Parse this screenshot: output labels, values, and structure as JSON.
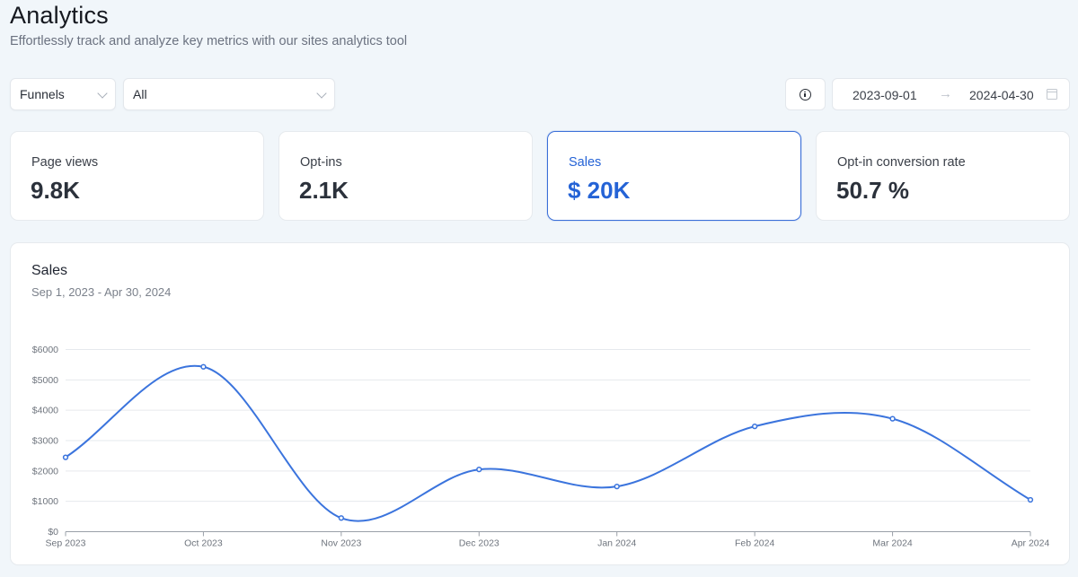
{
  "header": {
    "title": "Analytics",
    "subtitle": "Effortlessly track and analyze key metrics with our sites analytics tool"
  },
  "filters": {
    "type_select": {
      "value": "Funnels"
    },
    "scope_select": {
      "value": "All"
    },
    "info_button": {
      "icon": "info-icon"
    },
    "date_range": {
      "start": "2023-09-01",
      "arrow": "→",
      "end": "2024-04-30",
      "icon": "calendar-icon"
    }
  },
  "stats": [
    {
      "label": "Page views",
      "value": "9.8K",
      "active": false
    },
    {
      "label": "Opt-ins",
      "value": "2.1K",
      "active": false
    },
    {
      "label": "Sales",
      "value": "$ 20K",
      "active": true
    },
    {
      "label": "Opt-in conversion rate",
      "value": "50.7 %",
      "active": false
    }
  ],
  "colors": {
    "accent": "#2563d6",
    "line": "#3b74dd",
    "background": "#f1f6fa"
  },
  "chart_data": {
    "type": "line",
    "title": "Sales",
    "subtitle": "Sep 1, 2023 - Apr 30, 2024",
    "xlabel": "",
    "ylabel": "",
    "categories": [
      "Sep 2023",
      "Oct 2023",
      "Nov 2023",
      "Dec 2023",
      "Jan 2024",
      "Feb 2024",
      "Mar 2024",
      "Apr 2024"
    ],
    "series": [
      {
        "name": "Sales",
        "values": [
          2450,
          5430,
          450,
          2050,
          1490,
          3470,
          3720,
          1050
        ]
      }
    ],
    "ylim": [
      0,
      6000
    ],
    "yticks": [
      0,
      1000,
      2000,
      3000,
      4000,
      5000,
      6000
    ],
    "ytick_labels": [
      "$0",
      "$1000",
      "$2000",
      "$3000",
      "$4000",
      "$5000",
      "$6000"
    ],
    "grid": true,
    "smooth": true,
    "legend": "none"
  }
}
